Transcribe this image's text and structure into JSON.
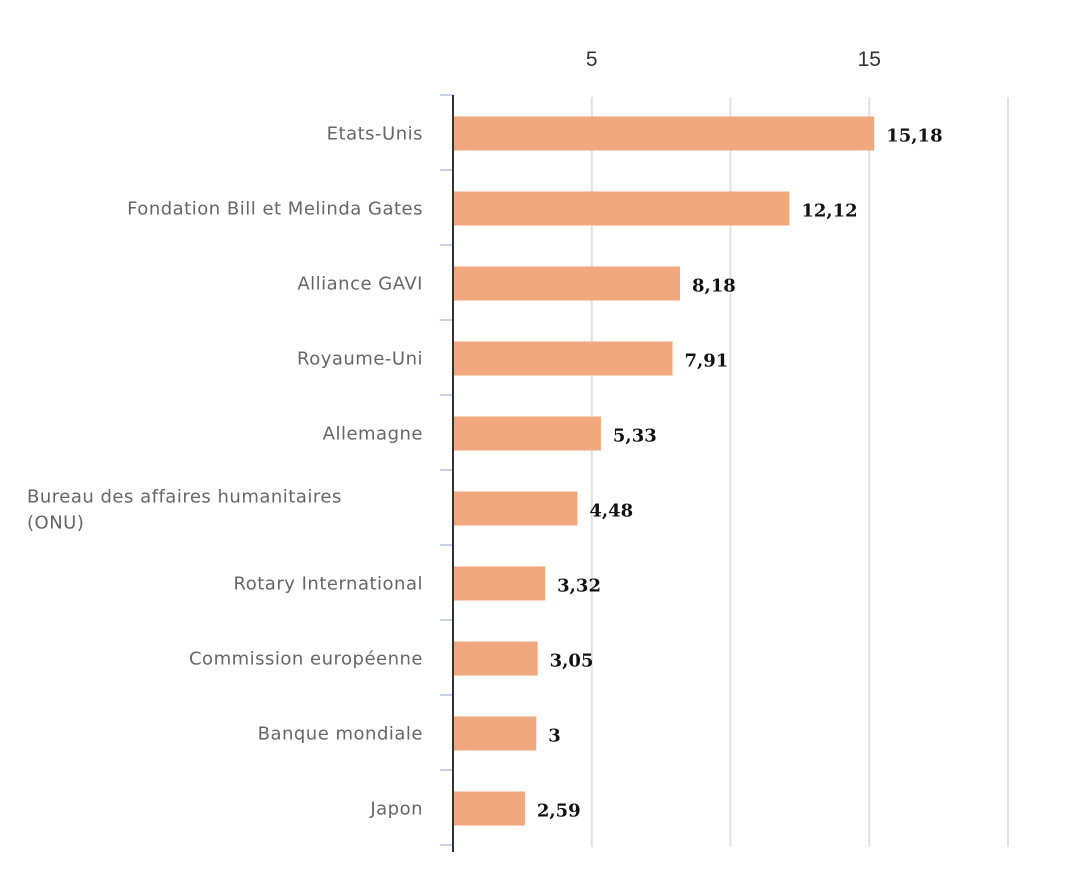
{
  "chart_data": {
    "type": "bar",
    "orientation": "horizontal",
    "title": "",
    "xlabel": "",
    "ylabel": "",
    "categories": [
      [
        "Etats-Unis"
      ],
      [
        "Fondation Bill et Melinda Gates"
      ],
      [
        "Alliance GAVI"
      ],
      [
        "Royaume-Uni"
      ],
      [
        "Allemagne"
      ],
      [
        "Bureau des affaires humanitaires",
        "(ONU)"
      ],
      [
        "Rotary International"
      ],
      [
        "Commission européenne"
      ],
      [
        "Banque mondiale"
      ],
      [
        "Japon"
      ]
    ],
    "values": [
      15.18,
      12.12,
      8.18,
      7.91,
      5.33,
      4.48,
      3.32,
      3.05,
      3,
      2.59
    ],
    "value_labels": [
      "15,18",
      "12,12",
      "8,18",
      "7,91",
      "5,33",
      "4,48",
      "3,32",
      "3,05",
      "3",
      "2,59"
    ],
    "xlim": [
      0,
      20
    ],
    "gridlines": [
      5,
      10,
      15,
      20
    ],
    "tick_labels": [
      {
        "value": 5,
        "label": "5"
      },
      {
        "value": 15,
        "label": "15"
      }
    ],
    "grid": true,
    "axis_position": "top",
    "bar_color": "#f2a87e"
  }
}
